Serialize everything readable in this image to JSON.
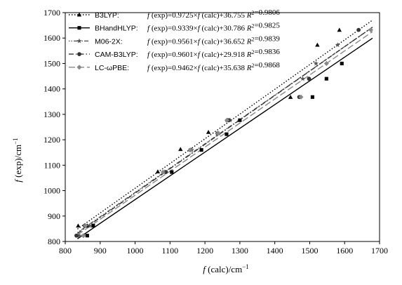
{
  "chart_data": {
    "type": "scatter",
    "xlabel": "f (calc)/cm⁻¹",
    "ylabel": "f (exp)/cm⁻¹",
    "xlim": [
      800,
      1700
    ],
    "ylim": [
      800,
      1700
    ],
    "xticks": [
      "800",
      "900",
      "1000",
      "1100",
      "1200",
      "1300",
      "1400",
      "1500",
      "1600",
      "1700"
    ],
    "yticks": [
      "800",
      "900",
      "1000",
      "1100",
      "1200",
      "1300",
      "1400",
      "1500",
      "1600",
      "1700"
    ],
    "legend_position": "top-left",
    "series": [
      {
        "name": "B3LYP:",
        "equation": "f (exp)=0.9725×f (calc)+36.755 R²=0.9806",
        "slope": 0.9725,
        "intercept": 36.755,
        "marker": "triangle",
        "line_style": "dotted",
        "color": "#000000",
        "x": [
          837,
          863,
          1065,
          1130,
          1210,
          1265,
          1445,
          1522,
          1585
        ],
        "y": [
          862,
          862,
          1075,
          1163,
          1230,
          1277,
          1368,
          1573,
          1632
        ]
      },
      {
        "name": "BHandHLYP:",
        "equation": "f (exp)=0.9339×f (calc)+30.786 R²=0.9825",
        "slope": 0.9339,
        "intercept": 30.786,
        "marker": "square",
        "line_style": "solid",
        "color": "#000000",
        "x": [
          863,
          880,
          1105,
          1190,
          1262,
          1300,
          1508,
          1548,
          1592
        ],
        "y": [
          823,
          862,
          1073,
          1160,
          1222,
          1277,
          1368,
          1440,
          1500
        ]
      },
      {
        "name": "M06-2X:",
        "equation": "f (exp)=0.9561×f (calc)+36.652 R²=0.9839",
        "slope": 0.9561,
        "intercept": 36.652,
        "marker": "star",
        "line_style": "dot-dot-dash",
        "color": "#555555",
        "x": [
          840,
          870,
          1085,
          1162,
          1240,
          1272,
          1480,
          1518,
          1580
        ],
        "y": [
          823,
          862,
          1073,
          1160,
          1225,
          1277,
          1440,
          1500,
          1573
        ]
      },
      {
        "name": "CAM-B3LYP:",
        "equation": "f (exp)=0.9601×f (calc)+29.918 R²=0.9836",
        "slope": 0.9601,
        "intercept": 29.918,
        "marker": "circle",
        "line_style": "dash-dot",
        "color": "#333333",
        "x": [
          832,
          856,
          1088,
          1158,
          1236,
          1268,
          1470,
          1498,
          1640
        ],
        "y": [
          823,
          862,
          1073,
          1160,
          1225,
          1277,
          1368,
          1440,
          1632
        ]
      },
      {
        "name": "LC-ωPBE:",
        "equation": "f (exp)=0.9462×f (calc)+35.638 R²=0.9868",
        "slope": 0.9462,
        "intercept": 35.638,
        "marker": "diamond",
        "line_style": "long-dash",
        "color": "#888888",
        "x": [
          852,
          858,
          1080,
          1158,
          1238,
          1263,
          1475,
          1548,
          1675
        ],
        "y": [
          823,
          862,
          1073,
          1160,
          1225,
          1277,
          1368,
          1500,
          1632
        ]
      }
    ]
  }
}
